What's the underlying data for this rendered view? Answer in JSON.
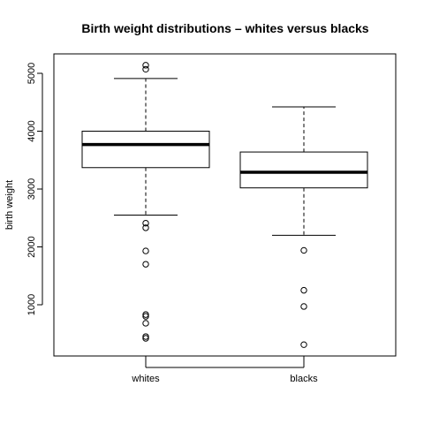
{
  "chart_data": {
    "type": "boxplot",
    "title": "Birth weight distributions – whites versus blacks",
    "ylabel": "birth weight",
    "xlabel": "",
    "ylim": [
      0,
      5300
    ],
    "yticks": [
      1000,
      2000,
      3000,
      4000,
      5000
    ],
    "grid": false,
    "groups": [
      {
        "name": "whites",
        "whisker_low": 2550,
        "q1": 3370,
        "median": 3770,
        "q3": 4000,
        "whisker_high": 4910,
        "outliers": [
          5140,
          5070,
          2410,
          2330,
          1930,
          1700,
          830,
          800,
          680,
          450,
          420
        ]
      },
      {
        "name": "blacks",
        "whisker_low": 2200,
        "q1": 3020,
        "median": 3290,
        "q3": 3640,
        "whisker_high": 4420,
        "outliers": [
          1940,
          1250,
          970,
          310
        ]
      }
    ]
  }
}
